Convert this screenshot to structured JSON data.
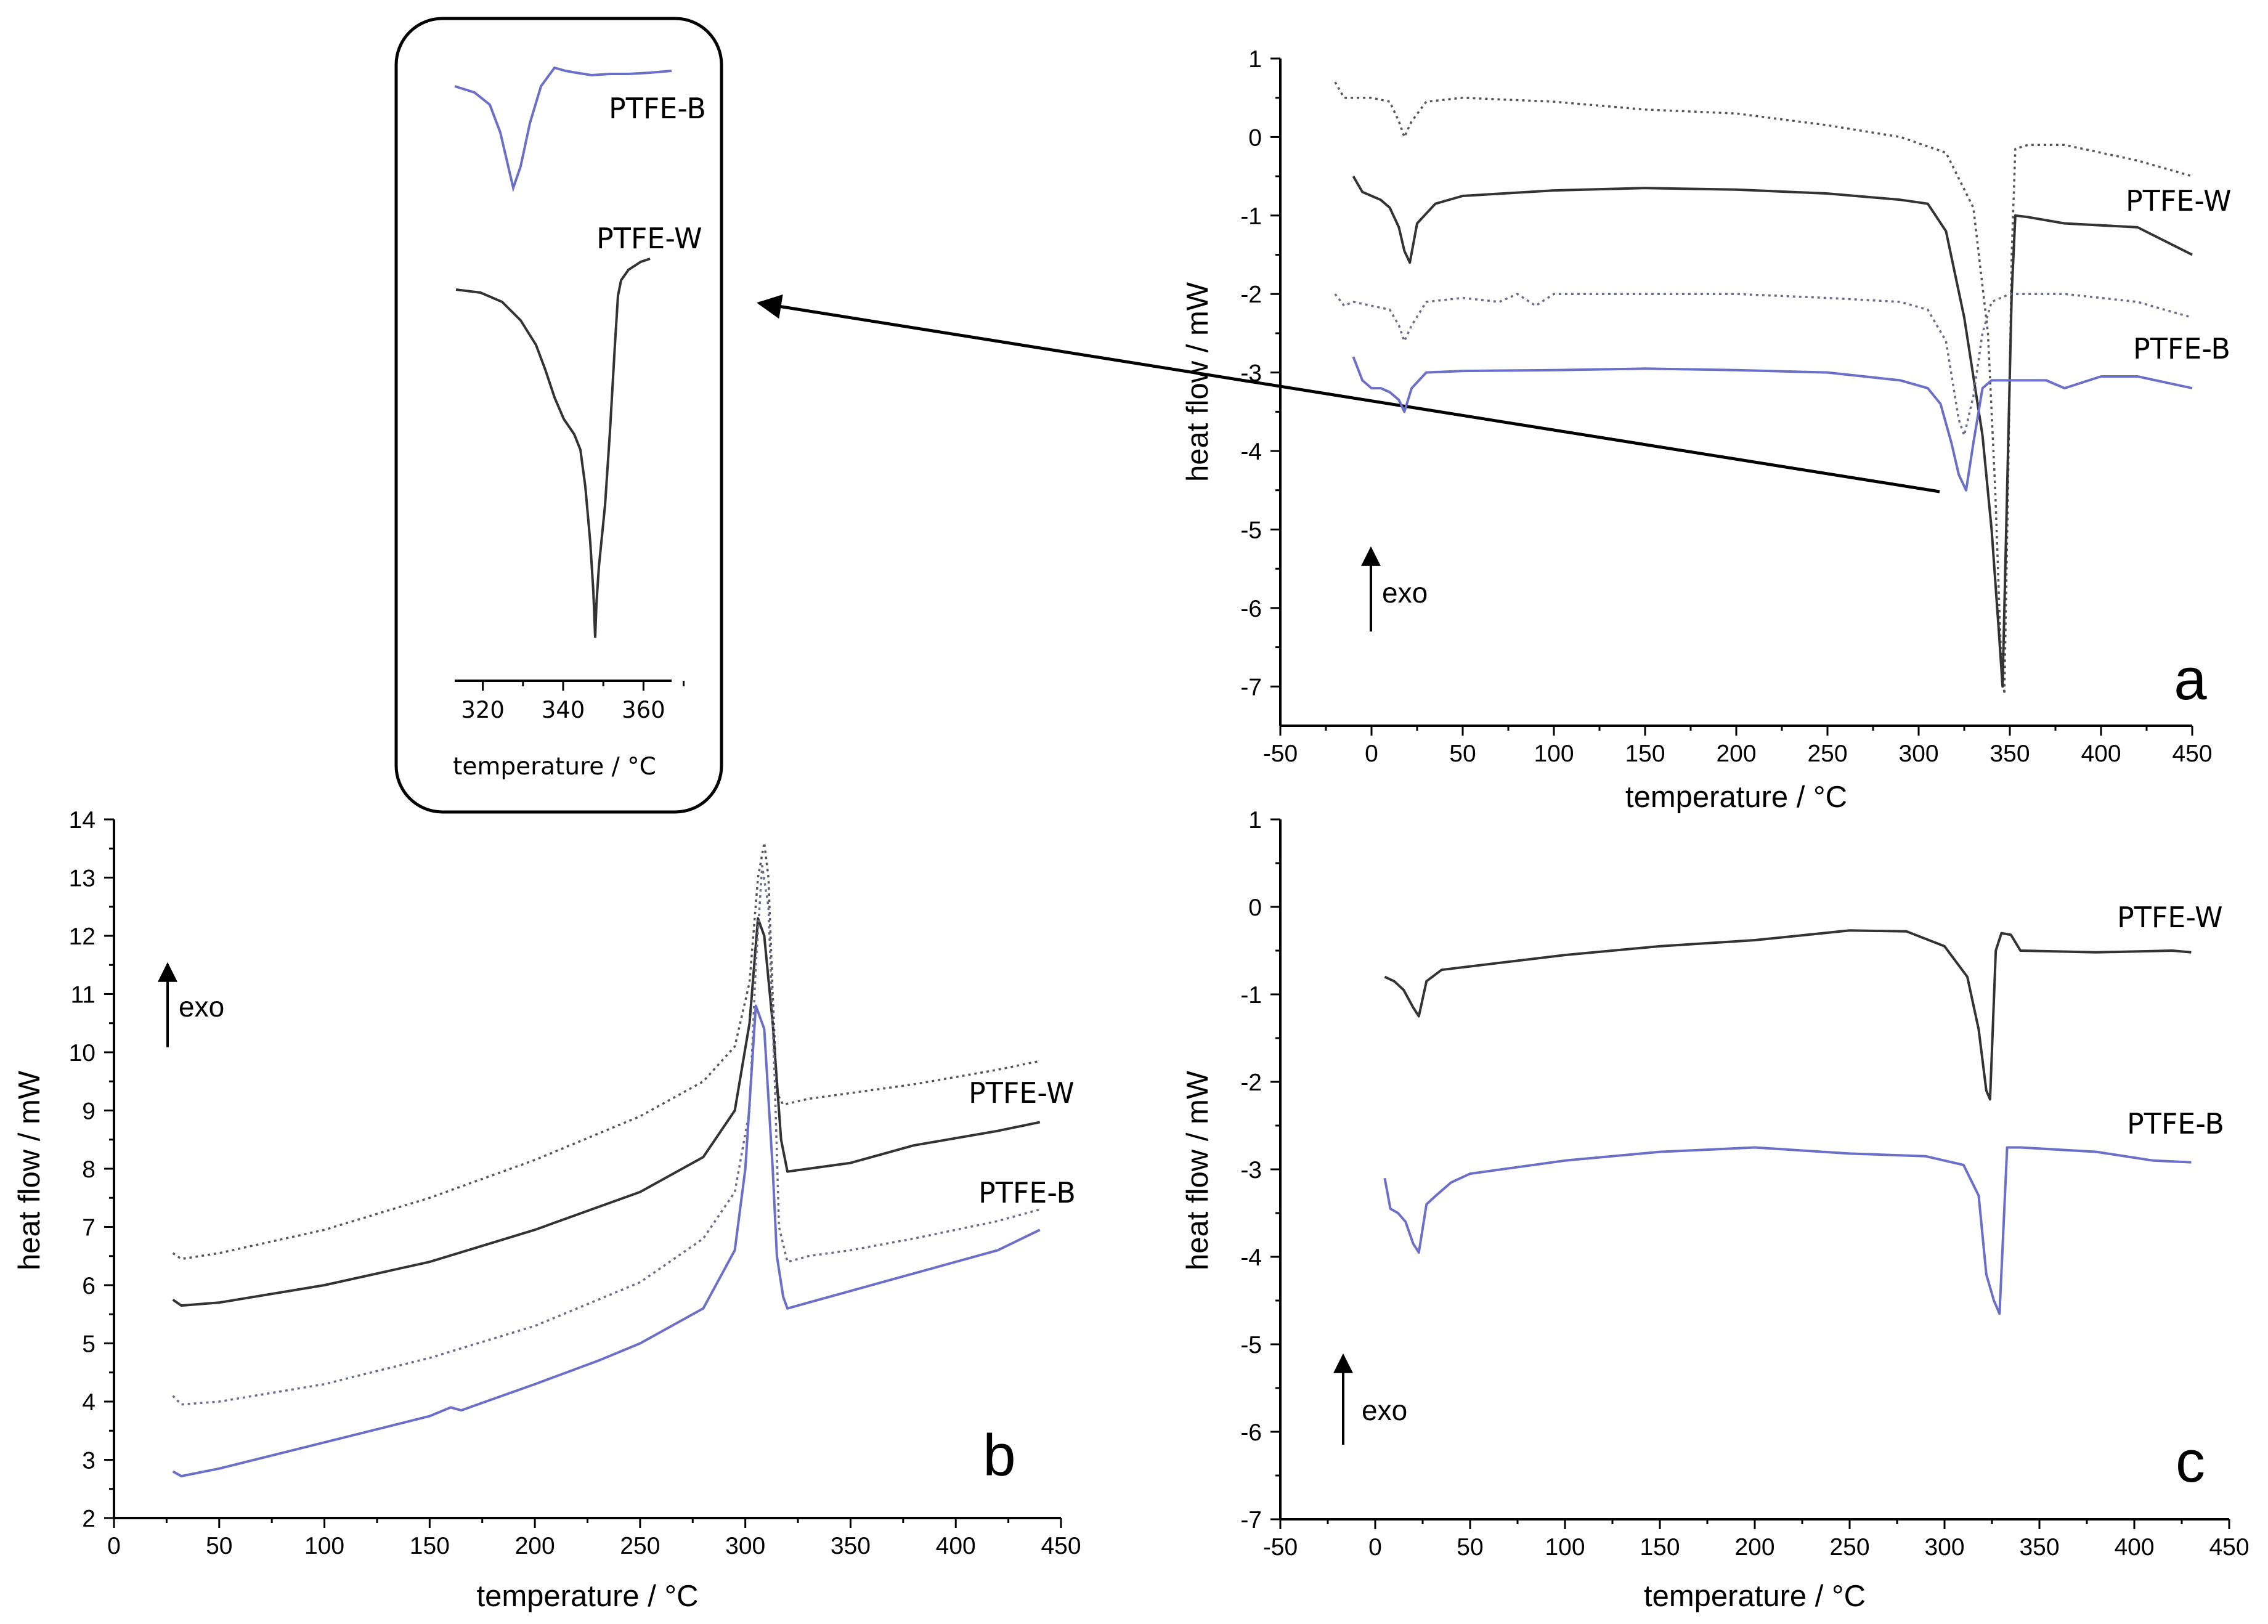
{
  "figure": {
    "inset": {
      "xlabel": "temperature / °C",
      "xticks": [
        320,
        340,
        360
      ],
      "xlim": [
        313,
        367
      ],
      "label_b": "PTFE-B",
      "label_w": "PTFE-W"
    }
  },
  "chart_data": [
    {
      "panel": "a",
      "type": "line",
      "xlabel": "temperature / °C",
      "ylabel": "heat flow / mW",
      "xlim": [
        -50,
        450
      ],
      "ylim": [
        -7.5,
        1
      ],
      "xticks": [
        -50,
        0,
        50,
        100,
        150,
        200,
        250,
        300,
        350,
        400,
        450
      ],
      "yticks": [
        -7,
        -6,
        -5,
        -4,
        -3,
        -2,
        -1,
        0,
        1
      ],
      "exo_label": "exo",
      "annotations": [
        "PTFE-W",
        "PTFE-B"
      ],
      "series": [
        {
          "name": "PTFE-W (dotted)",
          "style": "dotted",
          "color": "#555555",
          "x": [
            -20,
            -15,
            -10,
            0,
            10,
            15,
            18,
            22,
            30,
            50,
            100,
            150,
            200,
            250,
            290,
            315,
            330,
            338,
            342,
            345,
            347,
            349,
            351,
            353,
            360,
            380,
            420,
            450
          ],
          "y": [
            0.7,
            0.5,
            0.5,
            0.5,
            0.45,
            0.2,
            0.0,
            0.2,
            0.45,
            0.5,
            0.45,
            0.35,
            0.3,
            0.15,
            0.0,
            -0.2,
            -0.9,
            -2.5,
            -4.5,
            -6.5,
            -7.1,
            -4.5,
            -1.5,
            -0.15,
            -0.1,
            -0.1,
            -0.3,
            -0.5
          ]
        },
        {
          "name": "PTFE-W",
          "style": "solid",
          "color": "#333333",
          "x": [
            -10,
            -5,
            0,
            5,
            10,
            15,
            18,
            21,
            25,
            35,
            50,
            100,
            150,
            200,
            250,
            290,
            305,
            315,
            325,
            335,
            340,
            344,
            346,
            348,
            351,
            353,
            360,
            380,
            420,
            450
          ],
          "y": [
            -0.5,
            -0.7,
            -0.75,
            -0.8,
            -0.9,
            -1.15,
            -1.45,
            -1.6,
            -1.1,
            -0.85,
            -0.75,
            -0.68,
            -0.65,
            -0.67,
            -0.72,
            -0.8,
            -0.85,
            -1.2,
            -2.3,
            -3.8,
            -5.0,
            -6.3,
            -7.0,
            -5.0,
            -2.0,
            -1.0,
            -1.02,
            -1.1,
            -1.15,
            -1.5
          ]
        },
        {
          "name": "PTFE-B (dotted)",
          "style": "dotted",
          "color": "#6a6a8a",
          "x": [
            -20,
            -15,
            -10,
            0,
            10,
            15,
            18,
            22,
            30,
            50,
            70,
            80,
            90,
            100,
            150,
            200,
            250,
            290,
            305,
            315,
            322,
            325,
            330,
            335,
            340,
            350,
            380,
            420,
            450
          ],
          "y": [
            -2.0,
            -2.15,
            -2.1,
            -2.15,
            -2.2,
            -2.4,
            -2.6,
            -2.4,
            -2.1,
            -2.05,
            -2.1,
            -2.0,
            -2.15,
            -2.0,
            -2.0,
            -2.0,
            -2.05,
            -2.1,
            -2.2,
            -2.6,
            -3.6,
            -3.8,
            -3.3,
            -2.5,
            -2.1,
            -2.0,
            -2.0,
            -2.1,
            -2.3
          ]
        },
        {
          "name": "PTFE-B",
          "style": "solid",
          "color": "#6b6fc7",
          "x": [
            -10,
            -5,
            0,
            5,
            10,
            15,
            18,
            22,
            30,
            50,
            100,
            150,
            200,
            250,
            290,
            305,
            312,
            318,
            322,
            326,
            330,
            335,
            340,
            350,
            370,
            380,
            400,
            420,
            450
          ],
          "y": [
            -2.8,
            -3.1,
            -3.2,
            -3.2,
            -3.25,
            -3.35,
            -3.5,
            -3.2,
            -3.0,
            -2.98,
            -2.97,
            -2.95,
            -2.97,
            -3.0,
            -3.1,
            -3.2,
            -3.4,
            -3.9,
            -4.3,
            -4.5,
            -3.9,
            -3.2,
            -3.1,
            -3.1,
            -3.1,
            -3.2,
            -3.05,
            -3.05,
            -3.2
          ]
        }
      ]
    },
    {
      "panel": "b",
      "type": "line",
      "xlabel": "temperature / °C",
      "ylabel": "heat flow / mW",
      "xlim": [
        0,
        450
      ],
      "ylim": [
        2,
        14
      ],
      "xticks": [
        0,
        50,
        100,
        150,
        200,
        250,
        300,
        350,
        400,
        450
      ],
      "yticks": [
        2,
        3,
        4,
        5,
        6,
        7,
        8,
        9,
        10,
        11,
        12,
        13,
        14
      ],
      "exo_label": "exo",
      "annotations": [
        "PTFE-W",
        "PTFE-B"
      ],
      "series": [
        {
          "name": "PTFE-W (dotted)",
          "style": "dotted",
          "color": "#555555",
          "x": [
            28,
            32,
            50,
            100,
            150,
            200,
            250,
            280,
            295,
            302,
            306,
            309,
            311,
            313,
            315,
            318,
            330,
            350,
            380,
            420,
            440
          ],
          "y": [
            6.55,
            6.45,
            6.55,
            6.95,
            7.5,
            8.15,
            8.9,
            9.5,
            10.1,
            11.2,
            13.0,
            13.6,
            13.0,
            11.0,
            9.3,
            9.1,
            9.2,
            9.3,
            9.45,
            9.7,
            9.85
          ]
        },
        {
          "name": "PTFE-W",
          "style": "solid",
          "color": "#333333",
          "x": [
            28,
            32,
            50,
            100,
            150,
            200,
            250,
            280,
            295,
            302,
            306,
            309,
            313,
            317,
            320,
            330,
            350,
            380,
            420,
            440
          ],
          "y": [
            5.75,
            5.65,
            5.7,
            6.0,
            6.4,
            6.95,
            7.6,
            8.2,
            9.0,
            10.5,
            12.3,
            12.0,
            10.5,
            8.5,
            7.95,
            8.0,
            8.1,
            8.4,
            8.65,
            8.8
          ]
        },
        {
          "name": "PTFE-B (dotted)",
          "style": "dotted",
          "color": "#6a6a8a",
          "x": [
            28,
            32,
            50,
            100,
            150,
            200,
            250,
            280,
            295,
            302,
            305,
            308,
            311,
            314,
            316,
            320,
            330,
            350,
            380,
            420,
            440
          ],
          "y": [
            4.1,
            3.95,
            4.0,
            4.3,
            4.75,
            5.3,
            6.05,
            6.8,
            7.6,
            9.0,
            11.5,
            13.2,
            12.5,
            9.5,
            7.0,
            6.4,
            6.5,
            6.6,
            6.8,
            7.1,
            7.3
          ]
        },
        {
          "name": "PTFE-B",
          "style": "solid",
          "color": "#6b6fc7",
          "x": [
            28,
            32,
            50,
            100,
            150,
            160,
            165,
            200,
            230,
            250,
            280,
            295,
            300,
            305,
            309,
            313,
            315,
            318,
            320,
            330,
            350,
            380,
            420,
            440
          ],
          "y": [
            2.8,
            2.72,
            2.85,
            3.3,
            3.75,
            3.9,
            3.85,
            4.3,
            4.7,
            5.0,
            5.6,
            6.6,
            8.0,
            10.8,
            10.4,
            8.0,
            6.5,
            5.8,
            5.6,
            5.7,
            5.9,
            6.2,
            6.6,
            6.95
          ]
        }
      ]
    },
    {
      "panel": "c",
      "type": "line",
      "xlabel": "temperature / °C",
      "ylabel": "heat flow / mW",
      "xlim": [
        -50,
        450
      ],
      "ylim": [
        -7,
        1
      ],
      "xticks": [
        -50,
        0,
        50,
        100,
        150,
        200,
        250,
        300,
        350,
        400,
        450
      ],
      "yticks": [
        -7,
        -6,
        -5,
        -4,
        -3,
        -2,
        -1,
        0,
        1
      ],
      "exo_label": "exo",
      "annotations": [
        "PTFE-W",
        "PTFE-B"
      ],
      "series": [
        {
          "name": "PTFE-W",
          "style": "solid",
          "color": "#333333",
          "x": [
            5,
            10,
            15,
            20,
            23,
            27,
            35,
            50,
            100,
            150,
            200,
            250,
            280,
            300,
            312,
            318,
            322,
            324,
            327,
            330,
            335,
            340,
            380,
            420,
            430
          ],
          "y": [
            -0.8,
            -0.85,
            -0.95,
            -1.15,
            -1.25,
            -0.85,
            -0.72,
            -0.68,
            -0.55,
            -0.45,
            -0.38,
            -0.27,
            -0.28,
            -0.45,
            -0.8,
            -1.4,
            -2.1,
            -2.2,
            -0.5,
            -0.3,
            -0.32,
            -0.5,
            -0.52,
            -0.5,
            -0.52
          ]
        },
        {
          "name": "PTFE-B",
          "style": "solid",
          "color": "#6b6fc7",
          "x": [
            5,
            8,
            12,
            16,
            20,
            23,
            27,
            32,
            40,
            50,
            100,
            150,
            200,
            250,
            290,
            310,
            318,
            322,
            326,
            329,
            333,
            340,
            380,
            410,
            430
          ],
          "y": [
            -3.1,
            -3.45,
            -3.5,
            -3.6,
            -3.85,
            -3.95,
            -3.4,
            -3.3,
            -3.15,
            -3.05,
            -2.9,
            -2.8,
            -2.75,
            -2.82,
            -2.85,
            -2.95,
            -3.3,
            -4.2,
            -4.5,
            -4.65,
            -2.75,
            -2.75,
            -2.8,
            -2.9,
            -2.92
          ]
        }
      ]
    }
  ]
}
